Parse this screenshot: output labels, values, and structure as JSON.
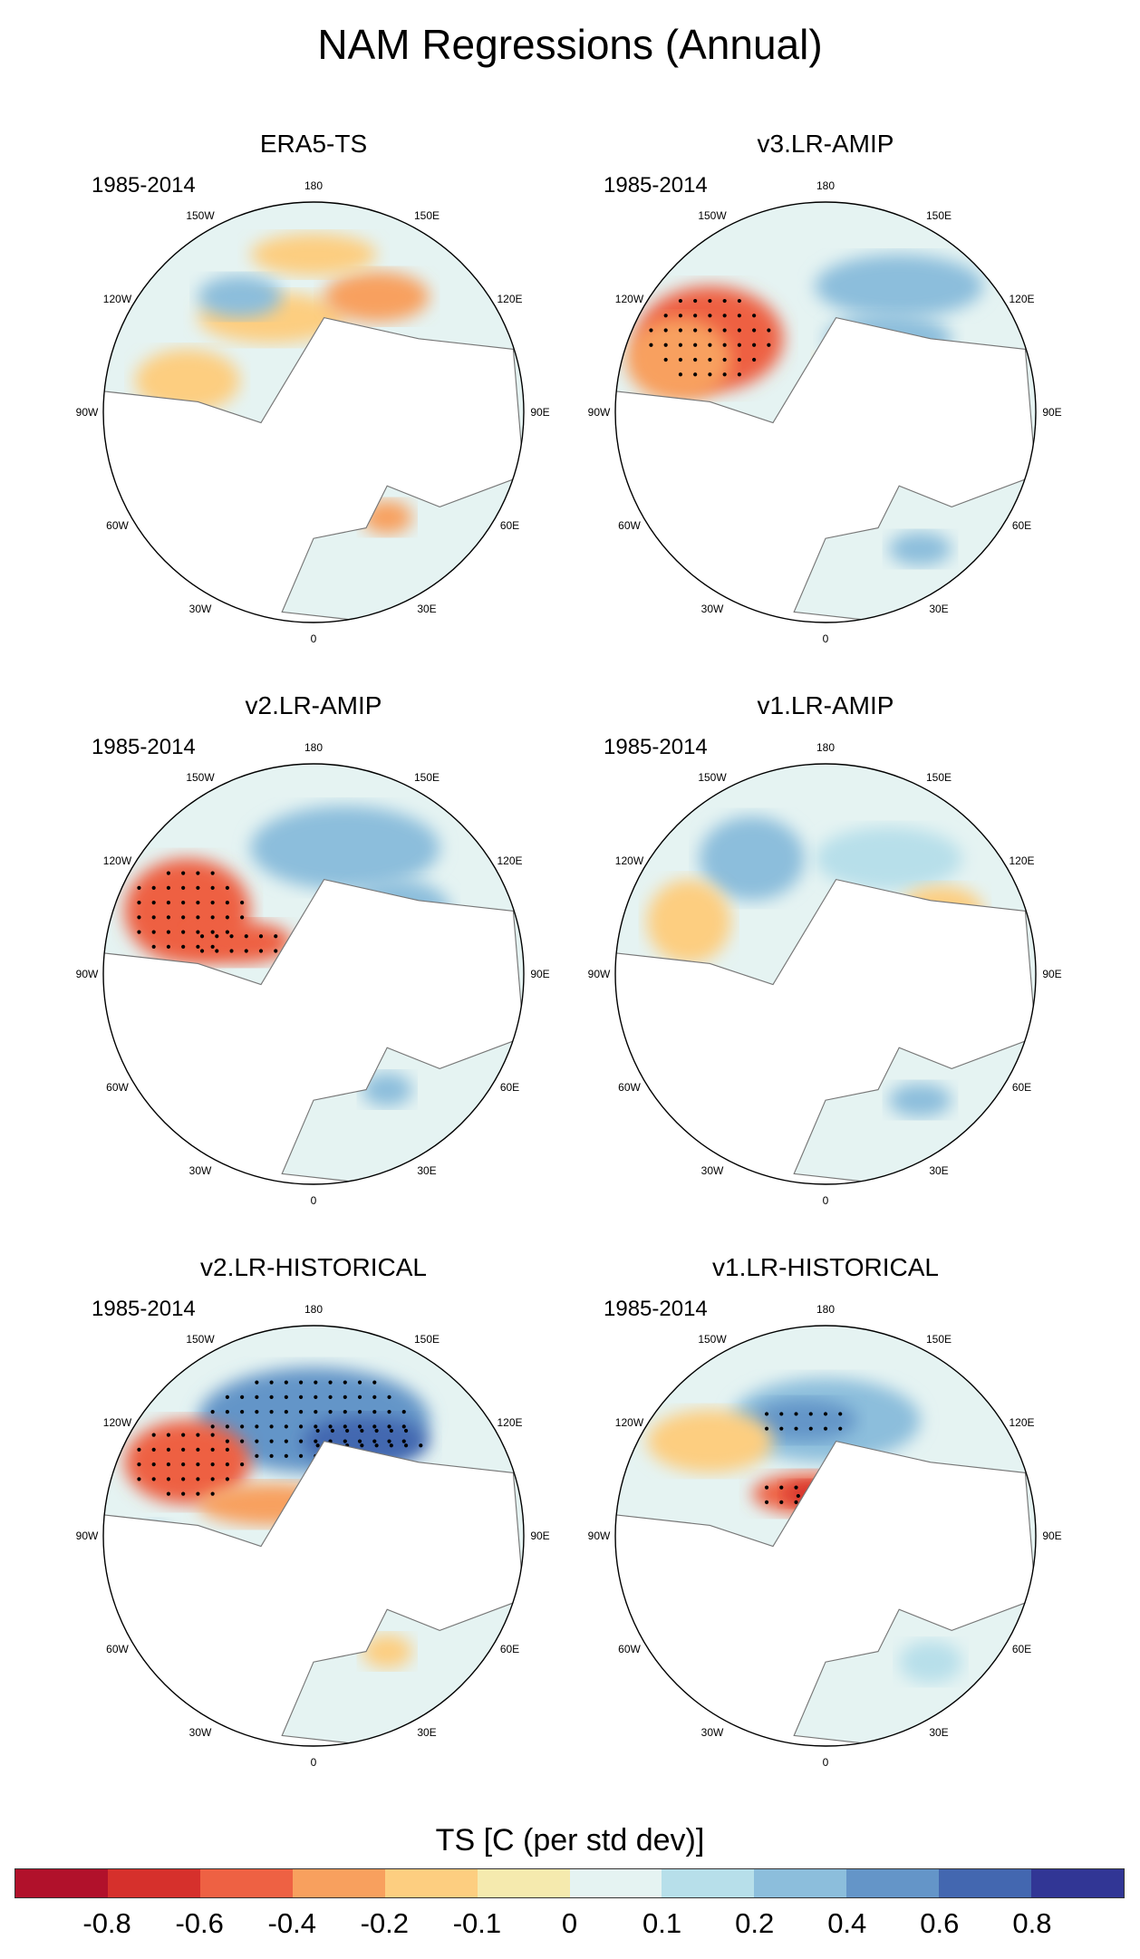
{
  "title": "NAM Regressions (Annual)",
  "period": "1985-2014",
  "lon_labels": [
    "180",
    "150E",
    "120E",
    "90E",
    "60E",
    "30E",
    "0",
    "30W",
    "60W",
    "90W",
    "120W",
    "150W"
  ],
  "panels": [
    {
      "title": "ERA5-TS",
      "pattern": "era5"
    },
    {
      "title": "v3.LR-AMIP",
      "pattern": "v3amip"
    },
    {
      "title": "v2.LR-AMIP",
      "pattern": "v2amip"
    },
    {
      "title": "v1.LR-AMIP",
      "pattern": "v1amip"
    },
    {
      "title": "v2.LR-HISTORICAL",
      "pattern": "v2hist"
    },
    {
      "title": "v1.LR-HISTORICAL",
      "pattern": "v1hist"
    }
  ],
  "colorbar": {
    "title": "TS [C (per std dev)]",
    "colors": [
      "#b1112b",
      "#d6302c",
      "#ee6143",
      "#f8a05e",
      "#fdce80",
      "#f5eaae",
      "#e5f3f2",
      "#b7dfea",
      "#8cbedc",
      "#6495c8",
      "#4367b0",
      "#313695"
    ],
    "ticks": [
      "-0.8",
      "-0.6",
      "-0.4",
      "-0.2",
      "-0.1",
      "0",
      "0.1",
      "0.2",
      "0.4",
      "0.6",
      "0.8"
    ]
  }
}
